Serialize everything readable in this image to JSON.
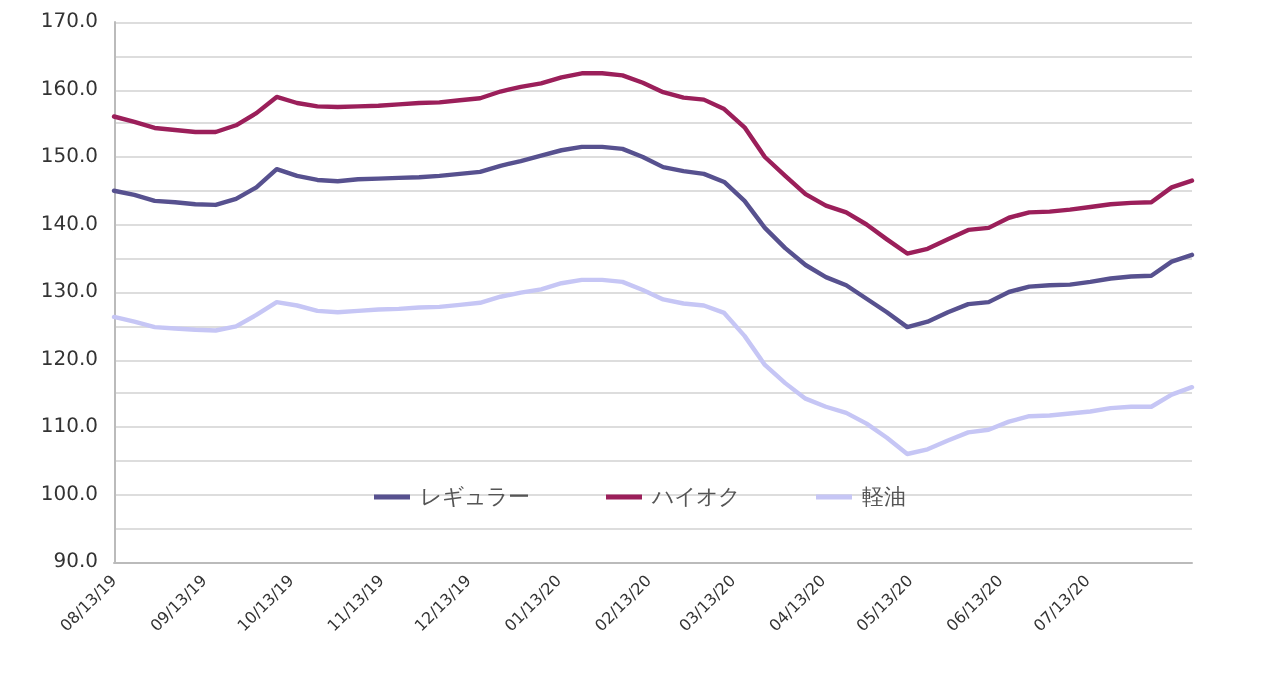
{
  "chart_data": {
    "type": "line",
    "x": [
      "2019-08-13",
      "2019-08-20",
      "2019-08-27",
      "2019-09-03",
      "2019-09-10",
      "2019-09-17",
      "2019-09-24",
      "2019-10-01",
      "2019-10-08",
      "2019-10-15",
      "2019-10-22",
      "2019-10-29",
      "2019-11-05",
      "2019-11-12",
      "2019-11-19",
      "2019-11-26",
      "2019-12-03",
      "2019-12-10",
      "2019-12-17",
      "2019-12-24",
      "2019-12-31",
      "2020-01-07",
      "2020-01-14",
      "2020-01-21",
      "2020-01-28",
      "2020-02-04",
      "2020-02-11",
      "2020-02-18",
      "2020-02-25",
      "2020-03-03",
      "2020-03-10",
      "2020-03-17",
      "2020-03-24",
      "2020-03-31",
      "2020-04-07",
      "2020-04-14",
      "2020-04-21",
      "2020-04-28",
      "2020-05-05",
      "2020-05-12",
      "2020-05-19",
      "2020-05-26",
      "2020-06-02",
      "2020-06-09",
      "2020-06-16",
      "2020-06-23",
      "2020-06-30",
      "2020-07-07",
      "2020-07-14",
      "2020-07-21",
      "2020-07-28",
      "2020-08-04",
      "2020-08-11",
      "2020-08-18"
    ],
    "series": [
      {
        "name": "レギュラー",
        "color": "#57518f",
        "values": [
          145.0,
          144.4,
          143.5,
          143.3,
          143.0,
          142.9,
          143.8,
          145.5,
          148.2,
          147.2,
          146.6,
          146.4,
          146.7,
          146.8,
          146.9,
          147.0,
          147.2,
          147.5,
          147.8,
          148.7,
          149.4,
          150.2,
          151.0,
          151.5,
          151.5,
          151.2,
          150.0,
          148.5,
          147.9,
          147.5,
          146.3,
          143.5,
          139.5,
          136.5,
          134.0,
          132.2,
          131.0,
          129.0,
          127.0,
          124.8,
          125.6,
          127.0,
          128.2,
          128.5,
          130.0,
          130.8,
          131.0,
          131.1,
          131.5,
          132.0,
          132.3,
          132.4,
          134.5,
          135.5
        ]
      },
      {
        "name": "ハイオク",
        "color": "#9b1f5a",
        "values": [
          156.0,
          155.2,
          154.3,
          154.0,
          153.7,
          153.7,
          154.7,
          156.5,
          158.9,
          158.0,
          157.5,
          157.4,
          157.5,
          157.6,
          157.8,
          158.0,
          158.1,
          158.4,
          158.7,
          159.7,
          160.4,
          160.9,
          161.8,
          162.4,
          162.4,
          162.1,
          161.0,
          159.6,
          158.8,
          158.5,
          157.1,
          154.4,
          150.0,
          147.2,
          144.5,
          142.8,
          141.8,
          140.0,
          137.8,
          135.7,
          136.4,
          137.8,
          139.2,
          139.5,
          141.0,
          141.8,
          141.9,
          142.2,
          142.6,
          143.0,
          143.2,
          143.3,
          145.5,
          146.5
        ]
      },
      {
        "name": "軽油",
        "color": "#c6c6f5",
        "values": [
          126.3,
          125.6,
          124.8,
          124.6,
          124.4,
          124.3,
          124.9,
          126.6,
          128.5,
          128.0,
          127.2,
          127.0,
          127.2,
          127.4,
          127.5,
          127.7,
          127.8,
          128.1,
          128.4,
          129.3,
          129.9,
          130.4,
          131.3,
          131.8,
          131.8,
          131.5,
          130.3,
          128.9,
          128.3,
          128.0,
          126.9,
          123.5,
          119.2,
          116.5,
          114.2,
          113.0,
          112.1,
          110.5,
          108.4,
          106.0,
          106.7,
          108.0,
          109.2,
          109.6,
          110.8,
          111.6,
          111.7,
          112.0,
          112.3,
          112.8,
          113.0,
          113.0,
          114.8,
          115.9
        ]
      }
    ],
    "xlim": [
      "2019-08-13",
      "2020-08-18"
    ],
    "xticks": [
      {
        "value": "2019-08-13",
        "label": "08/13/19"
      },
      {
        "value": "2019-09-13",
        "label": "09/13/19"
      },
      {
        "value": "2019-10-13",
        "label": "10/13/19"
      },
      {
        "value": "2019-11-13",
        "label": "11/13/19"
      },
      {
        "value": "2019-12-13",
        "label": "12/13/19"
      },
      {
        "value": "2020-01-13",
        "label": "01/13/20"
      },
      {
        "value": "2020-02-13",
        "label": "02/13/20"
      },
      {
        "value": "2020-03-13",
        "label": "03/13/20"
      },
      {
        "value": "2020-04-13",
        "label": "04/13/20"
      },
      {
        "value": "2020-05-13",
        "label": "05/13/20"
      },
      {
        "value": "2020-06-13",
        "label": "06/13/20"
      },
      {
        "value": "2020-07-13",
        "label": "07/13/20"
      }
    ],
    "ylim": [
      90,
      170
    ],
    "yticks": [
      {
        "value": 90,
        "label": "90.0"
      },
      {
        "value": 95,
        "label": null
      },
      {
        "value": 100,
        "label": "100.0"
      },
      {
        "value": 105,
        "label": null
      },
      {
        "value": 110,
        "label": "110.0"
      },
      {
        "value": 115,
        "label": null
      },
      {
        "value": 120,
        "label": "120.0"
      },
      {
        "value": 125,
        "label": null
      },
      {
        "value": 130,
        "label": "130.0"
      },
      {
        "value": 135,
        "label": null
      },
      {
        "value": 140,
        "label": "140.0"
      },
      {
        "value": 145,
        "label": null
      },
      {
        "value": 150,
        "label": "150.0"
      },
      {
        "value": 155,
        "label": null
      },
      {
        "value": 160,
        "label": "160.0"
      },
      {
        "value": 165,
        "label": null
      },
      {
        "value": 170,
        "label": "170.0"
      }
    ],
    "grid": "y",
    "legend": "bottom",
    "marker": "none",
    "line_style": "solid"
  }
}
